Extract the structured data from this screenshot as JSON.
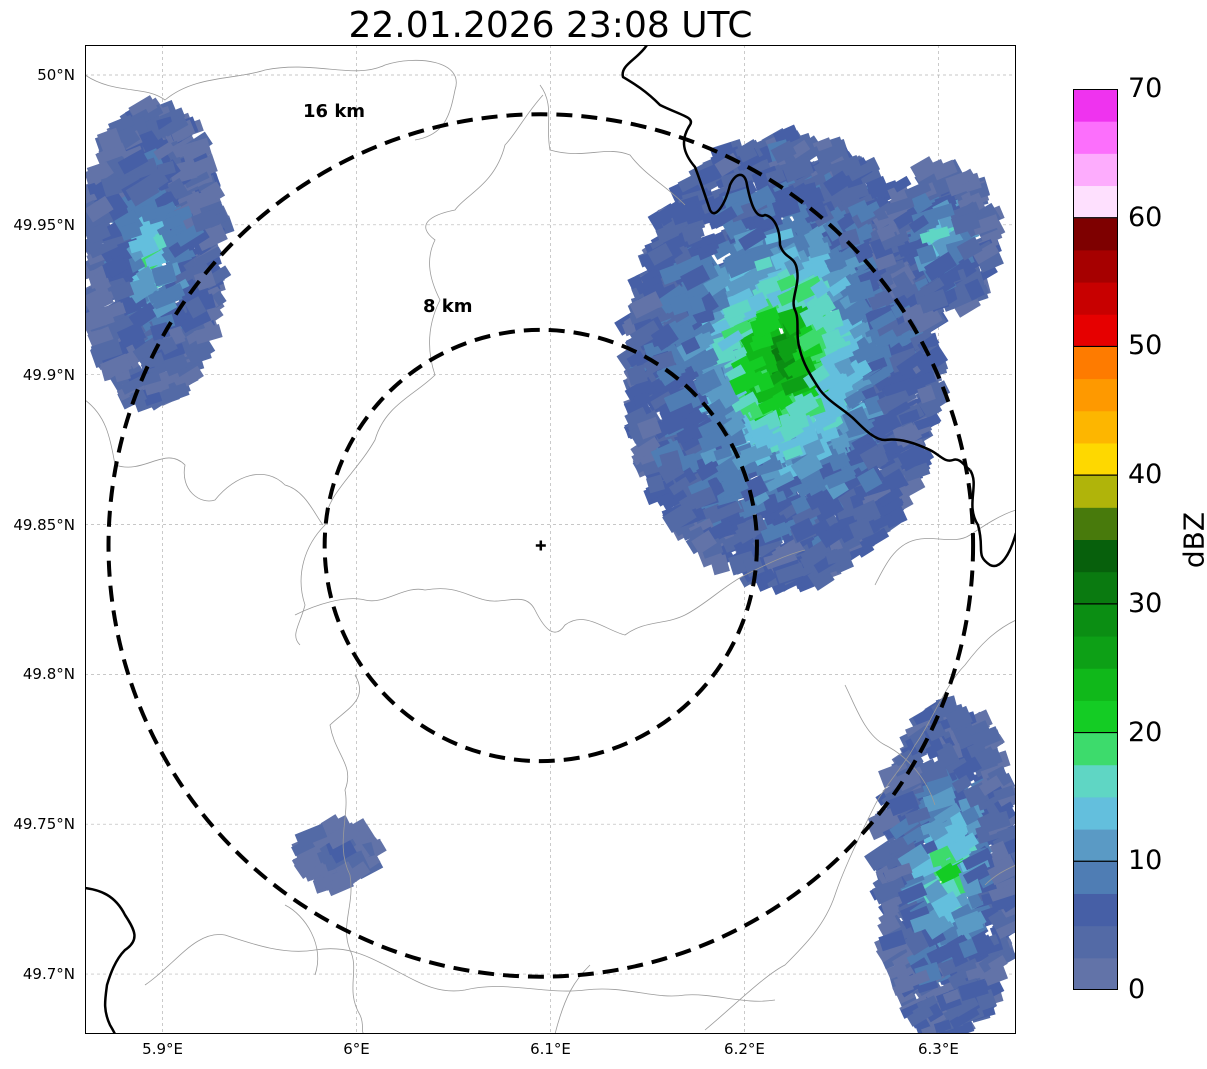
{
  "title": "22.01.2026 23:08 UTC",
  "map": {
    "lon_range": [
      5.86,
      6.34
    ],
    "lat_range": [
      49.68,
      50.01
    ],
    "radar_site": {
      "lon": 6.095,
      "lat": 49.843
    },
    "x_ticks": [
      {
        "v": 5.9,
        "label": "5.9°E"
      },
      {
        "v": 6.0,
        "label": "6°E"
      },
      {
        "v": 6.1,
        "label": "6.1°E"
      },
      {
        "v": 6.2,
        "label": "6.2°E"
      },
      {
        "v": 6.3,
        "label": "6.3°E"
      }
    ],
    "y_ticks": [
      {
        "v": 50.0,
        "label": "50°N"
      },
      {
        "v": 49.95,
        "label": "49.95°N"
      },
      {
        "v": 49.9,
        "label": "49.9°N"
      },
      {
        "v": 49.85,
        "label": "49.85°N"
      },
      {
        "v": 49.8,
        "label": "49.8°N"
      },
      {
        "v": 49.75,
        "label": "49.75°N"
      },
      {
        "v": 49.7,
        "label": "49.7°N"
      }
    ],
    "rings": [
      {
        "radius_km": 8,
        "label": "8 km"
      },
      {
        "radius_km": 16,
        "label": "16 km"
      }
    ],
    "grid": true,
    "border_color": "#000000",
    "boundary_color": "#9a9a9a"
  },
  "colorbar": {
    "label": "dBZ",
    "ticks": [
      "0",
      "10",
      "20",
      "30",
      "40",
      "50",
      "60",
      "70"
    ],
    "min": 0,
    "max": 70,
    "step": 2.5,
    "colors": [
      "#6273a8",
      "#536aa6",
      "#465fa6",
      "#4f7db4",
      "#5a9ac5",
      "#63bfdd",
      "#5fd6c4",
      "#3ddb6c",
      "#14cc24",
      "#10b81a",
      "#0da016",
      "#0b8e13",
      "#0a7a10",
      "#07600c",
      "#487a0c",
      "#b0b40a",
      "#fed800",
      "#fdb600",
      "#fe9900",
      "#fe7b00",
      "#e60000",
      "#c80000",
      "#a60000",
      "#7e0000",
      "#fee0fe",
      "#fdacfd",
      "#fc6ffc",
      "#ef33ef"
    ]
  },
  "echoes": [
    {
      "name": "northwest-band",
      "lon": [
        5.86,
        5.93
      ],
      "lat": [
        49.89,
        49.99
      ],
      "max_dbz": 18
    },
    {
      "name": "northeast-cell",
      "lon": [
        6.14,
        6.3
      ],
      "lat": [
        49.83,
        49.98
      ],
      "max_dbz": 30
    },
    {
      "name": "far-northeast-cell",
      "lon": [
        6.27,
        6.33
      ],
      "lat": [
        49.92,
        49.97
      ],
      "max_dbz": 18
    },
    {
      "name": "southeast-cell",
      "lon": [
        6.27,
        6.34
      ],
      "lat": [
        49.68,
        49.79
      ],
      "max_dbz": 22
    },
    {
      "name": "southwest-cell",
      "lon": [
        5.97,
        6.01
      ],
      "lat": [
        49.73,
        49.75
      ],
      "max_dbz": 8
    }
  ]
}
